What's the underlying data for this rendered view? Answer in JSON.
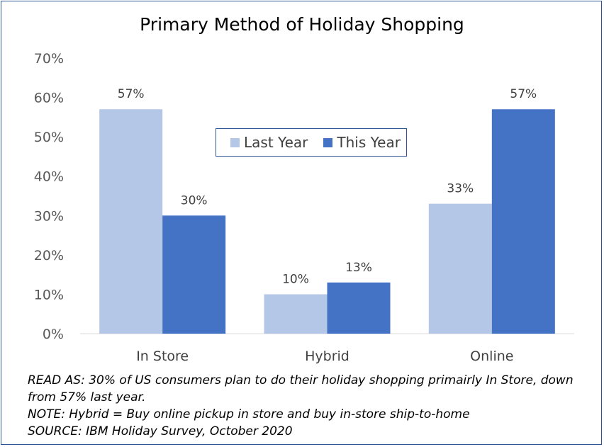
{
  "chart_data": {
    "type": "bar",
    "title": "Primary Method of Holiday Shopping",
    "categories": [
      "In Store",
      "Hybrid",
      "Online"
    ],
    "series": [
      {
        "name": "Last Year",
        "values": [
          57,
          10,
          33
        ],
        "labels": [
          "57%",
          "10%",
          "33%"
        ],
        "color": "#b4c7e7"
      },
      {
        "name": "This Year",
        "values": [
          30,
          13,
          57
        ],
        "labels": [
          "30%",
          "13%",
          "57%"
        ],
        "color": "#4472c4"
      }
    ],
    "ylim": [
      0,
      70
    ],
    "yticks": [
      "0%",
      "10%",
      "20%",
      "30%",
      "40%",
      "50%",
      "60%",
      "70%"
    ],
    "grid": false,
    "legend_position": "center-top"
  },
  "notes": {
    "read_as": "READ AS: 30% of US consumers plan to do their holiday shopping primairly In Store, down from 57% last year.",
    "note": "NOTE: Hybrid = Buy online pickup in store and buy in-store ship-to-home",
    "source": "SOURCE: IBM Holiday Survey, October 2020"
  }
}
